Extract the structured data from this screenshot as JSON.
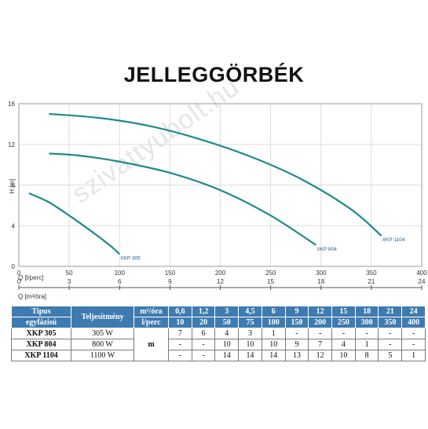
{
  "title": "JELLEGGÖRBÉK",
  "watermark": "szivattyubolt.hu",
  "chart_data": {
    "type": "line",
    "ylabel": "H [m]",
    "xlabel": "Q [l/perc]",
    "xlabel2": "Q [m³/óra]",
    "xlim": [
      0,
      400
    ],
    "ylim": [
      0,
      16
    ],
    "xticks": [
      0,
      50,
      100,
      150,
      200,
      250,
      300,
      350,
      400
    ],
    "yticks": [
      0,
      4,
      8,
      12,
      16
    ],
    "x2ticks": [
      0,
      3,
      6,
      9,
      12,
      15,
      18,
      21,
      24
    ],
    "grid": true,
    "series": [
      {
        "name": "XKP 305",
        "x": [
          10,
          30,
          50,
          70,
          90,
          100
        ],
        "y": [
          7.2,
          6.3,
          5.0,
          3.6,
          2.1,
          1.2
        ]
      },
      {
        "name": "XKP 804",
        "x": [
          30,
          60,
          100,
          150,
          200,
          250,
          295
        ],
        "y": [
          11.1,
          10.9,
          10.3,
          9.2,
          7.5,
          5.0,
          2.1
        ]
      },
      {
        "name": "XKP 1104",
        "x": [
          30,
          80,
          130,
          180,
          230,
          280,
          330,
          360
        ],
        "y": [
          15.0,
          14.6,
          13.8,
          12.5,
          10.8,
          8.6,
          5.6,
          3.0
        ]
      }
    ]
  },
  "table": {
    "header_tipus": "Tipus",
    "header_egyfazisu": "egyfázisú",
    "header_teljesitmeny": "Teljesítmény",
    "header_m3": "m³/óra",
    "header_lperc": "l/perc",
    "m3_values": [
      "0,6",
      "1,2",
      "3",
      "4,5",
      "6",
      "9",
      "12",
      "15",
      "18",
      "21",
      "24"
    ],
    "lperc_values": [
      "10",
      "20",
      "50",
      "75",
      "100",
      "150",
      "200",
      "250",
      "300",
      "350",
      "400"
    ],
    "unit": "m",
    "rows": [
      {
        "model": "XKP 305",
        "power": "305 W",
        "values": [
          "7",
          "6",
          "4",
          "3",
          "1",
          "-",
          "-",
          "-",
          "-",
          "-",
          "-"
        ]
      },
      {
        "model": "XKP 804",
        "power": "800 W",
        "values": [
          "-",
          "-",
          "10",
          "10",
          "10",
          "9",
          "7",
          "4",
          "1",
          "-",
          "-"
        ]
      },
      {
        "model": "XKP 1104",
        "power": "1100 W",
        "values": [
          "-",
          "-",
          "14",
          "14",
          "14",
          "13",
          "12",
          "10",
          "8",
          "5",
          "1"
        ]
      }
    ]
  },
  "colors": {
    "curve": "#1d8a8c",
    "curve_label": "#1b5f8c",
    "table_header": "#3e7bb0",
    "grid": "#dedede"
  }
}
